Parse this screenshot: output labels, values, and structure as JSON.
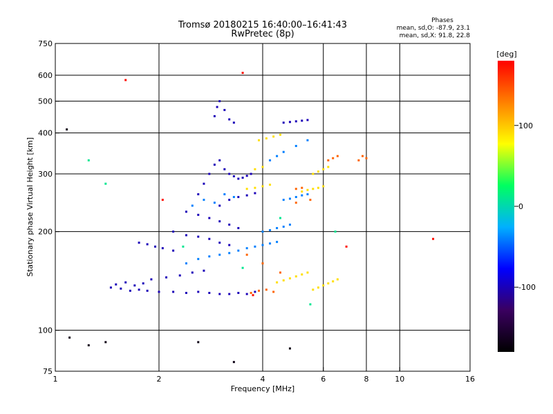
{
  "chart_data": {
    "type": "scatter",
    "title_line1": "Tromsø 20180215 16:40:00–16:41:43",
    "title_line2": "RwPretec (8p)",
    "stats": {
      "header": "Phases",
      "line_o": "mean, sd,O: -87.9, 23.1",
      "line_x": "mean, sd,X:  91.8, 22.8"
    },
    "xlabel": "Frequency [MHz]",
    "ylabel": "Stationary phase Virtual Height [km]",
    "x_scale": "log",
    "y_scale": "log",
    "xlim": [
      1,
      16
    ],
    "ylim": [
      75,
      750
    ],
    "x_ticks": [
      {
        "value": 1,
        "label": "1"
      },
      {
        "value": 2,
        "label": "2"
      },
      {
        "value": 4,
        "label": "4"
      },
      {
        "value": 6,
        "label": "6"
      },
      {
        "value": 8,
        "label": "8"
      },
      {
        "value": 10,
        "label": "10"
      },
      {
        "value": 16,
        "label": "16"
      }
    ],
    "x_gridlines": [
      2,
      4,
      6,
      8,
      10
    ],
    "y_ticks": [
      {
        "value": 75,
        "label": "75"
      },
      {
        "value": 100,
        "label": "100"
      },
      {
        "value": 200,
        "label": "200"
      },
      {
        "value": 300,
        "label": "300"
      },
      {
        "value": 400,
        "label": "400"
      },
      {
        "value": 500,
        "label": "500"
      },
      {
        "value": 600,
        "label": "600"
      },
      {
        "value": 750,
        "label": "750"
      }
    ],
    "y_gridlines": [
      100,
      200,
      300,
      400,
      500,
      600
    ],
    "grid": true,
    "colorbar": {
      "label": "[deg]",
      "range": [
        -180,
        180
      ],
      "ticks": [
        {
          "value": 100,
          "label": "100"
        },
        {
          "value": 0,
          "label": "0"
        },
        {
          "value": -100,
          "label": "-100"
        }
      ],
      "colors": [
        "#000000",
        "#3a0060",
        "#0000ff",
        "#00b0ff",
        "#00ff60",
        "#ffff00",
        "#ff8000",
        "#ff0000"
      ]
    },
    "series": [
      {
        "name": "",
        "phase_deg": -100,
        "points": [
          [
            1.45,
            135
          ],
          [
            1.55,
            134
          ],
          [
            1.65,
            132
          ],
          [
            1.75,
            133
          ],
          [
            1.85,
            132
          ],
          [
            2.0,
            131
          ],
          [
            2.2,
            131
          ],
          [
            2.4,
            130
          ],
          [
            2.6,
            131
          ],
          [
            2.8,
            130
          ],
          [
            3.0,
            129
          ],
          [
            3.2,
            129
          ],
          [
            3.4,
            130
          ],
          [
            3.6,
            129
          ],
          [
            3.8,
            131
          ],
          [
            1.5,
            138
          ],
          [
            1.6,
            140
          ],
          [
            1.7,
            137
          ],
          [
            1.8,
            139
          ],
          [
            1.9,
            143
          ],
          [
            2.1,
            145
          ],
          [
            2.3,
            147
          ],
          [
            2.5,
            150
          ],
          [
            2.7,
            152
          ],
          [
            1.75,
            185
          ],
          [
            1.85,
            183
          ],
          [
            1.95,
            180
          ],
          [
            2.05,
            178
          ],
          [
            2.2,
            175
          ],
          [
            2.6,
            260
          ],
          [
            2.7,
            280
          ],
          [
            2.8,
            300
          ],
          [
            2.9,
            320
          ],
          [
            3.0,
            330
          ],
          [
            3.1,
            310
          ],
          [
            3.2,
            300
          ],
          [
            3.3,
            295
          ],
          [
            3.4,
            290
          ],
          [
            3.5,
            292
          ],
          [
            3.6,
            296
          ],
          [
            3.7,
            300
          ],
          [
            2.9,
            450
          ],
          [
            2.95,
            480
          ],
          [
            3.0,
            500
          ],
          [
            3.1,
            470
          ],
          [
            3.2,
            440
          ],
          [
            3.3,
            430
          ],
          [
            4.6,
            430
          ],
          [
            4.8,
            432
          ],
          [
            5.0,
            434
          ],
          [
            5.2,
            436
          ],
          [
            5.4,
            438
          ],
          [
            2.4,
            230
          ],
          [
            2.6,
            225
          ],
          [
            2.8,
            220
          ],
          [
            3.0,
            215
          ],
          [
            3.2,
            210
          ],
          [
            3.4,
            205
          ],
          [
            3.0,
            240
          ],
          [
            3.2,
            250
          ],
          [
            3.4,
            255
          ],
          [
            3.6,
            258
          ],
          [
            3.8,
            262
          ],
          [
            2.2,
            200
          ],
          [
            2.4,
            195
          ],
          [
            2.6,
            193
          ],
          [
            2.8,
            190
          ],
          [
            3.0,
            185
          ],
          [
            3.2,
            182
          ]
        ]
      },
      {
        "name": "",
        "phase_deg": -40,
        "points": [
          [
            2.5,
            240
          ],
          [
            2.7,
            250
          ],
          [
            2.9,
            245
          ],
          [
            3.1,
            260
          ],
          [
            3.3,
            255
          ],
          [
            2.4,
            160
          ],
          [
            2.6,
            165
          ],
          [
            2.8,
            168
          ],
          [
            3.0,
            170
          ],
          [
            3.2,
            172
          ],
          [
            3.4,
            175
          ],
          [
            3.6,
            178
          ],
          [
            3.8,
            180
          ],
          [
            4.0,
            182
          ],
          [
            4.2,
            184
          ],
          [
            4.4,
            186
          ],
          [
            4.0,
            200
          ],
          [
            4.2,
            202
          ],
          [
            4.4,
            205
          ],
          [
            4.6,
            207
          ],
          [
            4.8,
            210
          ],
          [
            4.6,
            250
          ],
          [
            4.8,
            252
          ],
          [
            5.0,
            255
          ],
          [
            5.2,
            258
          ],
          [
            5.4,
            260
          ],
          [
            4.2,
            330
          ],
          [
            4.4,
            340
          ],
          [
            4.6,
            350
          ],
          [
            5.0,
            365
          ],
          [
            5.4,
            380
          ]
        ]
      },
      {
        "name": "",
        "phase_deg": 90,
        "points": [
          [
            3.6,
            270
          ],
          [
            3.8,
            272
          ],
          [
            4.0,
            275
          ],
          [
            4.2,
            278
          ],
          [
            3.8,
            310
          ],
          [
            4.0,
            315
          ],
          [
            3.9,
            380
          ],
          [
            4.1,
            385
          ],
          [
            4.3,
            390
          ],
          [
            4.5,
            395
          ],
          [
            4.4,
            140
          ],
          [
            4.6,
            142
          ],
          [
            4.8,
            144
          ],
          [
            5.0,
            146
          ],
          [
            5.2,
            148
          ],
          [
            5.4,
            150
          ],
          [
            5.6,
            133
          ],
          [
            5.8,
            135
          ],
          [
            6.0,
            137
          ],
          [
            6.2,
            139
          ],
          [
            6.4,
            141
          ],
          [
            6.6,
            143
          ],
          [
            5.2,
            265
          ],
          [
            5.4,
            268
          ],
          [
            5.6,
            270
          ],
          [
            5.8,
            272
          ],
          [
            6.0,
            275
          ],
          [
            5.6,
            300
          ],
          [
            5.8,
            305
          ],
          [
            6.0,
            310
          ],
          [
            6.2,
            315
          ]
        ]
      },
      {
        "name": "",
        "phase_deg": 140,
        "points": [
          [
            3.7,
            130
          ],
          [
            3.9,
            132
          ],
          [
            4.1,
            133
          ],
          [
            4.3,
            131
          ],
          [
            5.0,
            270
          ],
          [
            5.2,
            272
          ],
          [
            6.2,
            330
          ],
          [
            6.4,
            335
          ],
          [
            6.6,
            340
          ],
          [
            7.6,
            330
          ],
          [
            7.8,
            340
          ],
          [
            8.0,
            335
          ],
          [
            3.6,
            170
          ],
          [
            4.0,
            160
          ],
          [
            4.5,
            150
          ],
          [
            5.0,
            245
          ],
          [
            5.5,
            250
          ]
        ]
      },
      {
        "name": "",
        "phase_deg": -170,
        "points": [
          [
            1.1,
            95
          ],
          [
            1.25,
            90
          ],
          [
            1.4,
            92
          ],
          [
            2.6,
            92
          ],
          [
            3.3,
            80
          ],
          [
            4.8,
            88
          ],
          [
            1.08,
            410
          ]
        ]
      },
      {
        "name": "",
        "phase_deg": 10,
        "points": [
          [
            1.4,
            280
          ],
          [
            2.35,
            180
          ],
          [
            3.5,
            155
          ],
          [
            4.5,
            220
          ],
          [
            5.5,
            120
          ],
          [
            6.5,
            200
          ],
          [
            1.25,
            330
          ]
        ]
      },
      {
        "name": "",
        "phase_deg": 175,
        "points": [
          [
            1.6,
            580
          ],
          [
            3.5,
            610
          ],
          [
            12.5,
            190
          ],
          [
            2.05,
            250
          ],
          [
            7.0,
            180
          ],
          [
            3.75,
            128
          ]
        ]
      }
    ]
  }
}
